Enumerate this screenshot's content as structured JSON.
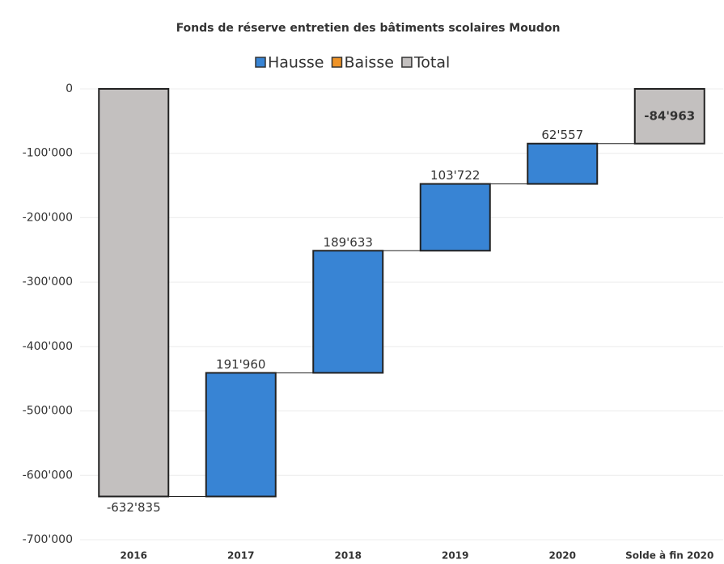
{
  "chart_data": {
    "type": "waterfall",
    "title": "Fonds  de réserve entretien des bâtiments scolaires Moudon",
    "categories": [
      "2016",
      "2017",
      "2018",
      "2019",
      "2020",
      "Solde à fin 2020"
    ],
    "series": [
      {
        "name": "Hausse",
        "color": "#3884d4",
        "values": [
          null,
          191960,
          189633,
          103722,
          62557,
          null
        ],
        "value_labels": [
          null,
          "191'960",
          "189'633",
          "103'722",
          "62'557",
          null
        ]
      },
      {
        "name": "Baisse",
        "color": "#ee9327",
        "values": [
          null,
          null,
          null,
          null,
          null,
          null
        ]
      },
      {
        "name": "Total",
        "color": "#c3c0bf",
        "is_total": true,
        "values": [
          -632835,
          null,
          null,
          null,
          null,
          -84963
        ],
        "value_labels": [
          "-632'835",
          null,
          null,
          null,
          null,
          "-84'963"
        ]
      }
    ],
    "ylim": [
      -700000,
      0
    ],
    "yticks": [
      0,
      {
        "value": -100000,
        "label": "-100'000"
      },
      {
        "value": -200000,
        "label": "-200'000"
      },
      {
        "value": -300000,
        "label": "-300'000"
      },
      {
        "value": -400000,
        "label": "-400'000"
      },
      {
        "value": -500000,
        "label": "-500'000"
      },
      {
        "value": -600000,
        "label": "-600'000"
      },
      {
        "value": -700000,
        "label": "-700'000"
      }
    ],
    "grid": true
  }
}
